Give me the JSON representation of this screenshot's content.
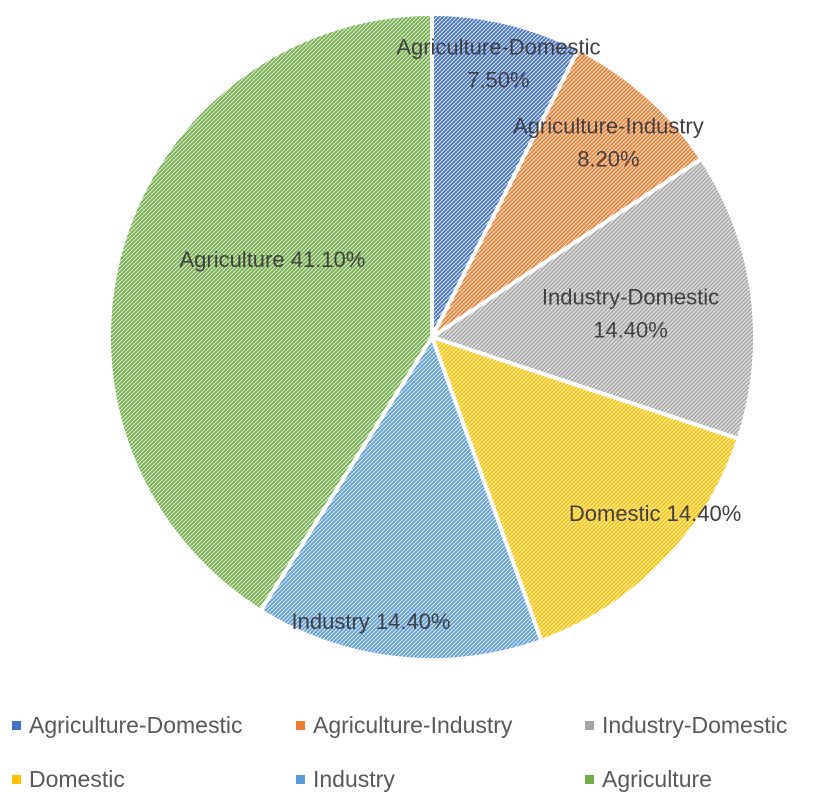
{
  "chart_data": {
    "type": "pie",
    "start_angle_deg": 0,
    "direction": "clockwise",
    "fill_pattern": "crosshatch",
    "legend_position": "bottom",
    "slices": [
      {
        "name": "Agriculture-Domestic",
        "value": 7.5,
        "label": "Agriculture-Domestic",
        "value_label": "7.50%",
        "color": "#4472C4"
      },
      {
        "name": "Agriculture-Industry",
        "value": 8.2,
        "label": "Agriculture-Industry",
        "value_label": "8.20%",
        "color": "#ED7D31"
      },
      {
        "name": "Industry-Domestic",
        "value": 14.4,
        "label": "Industry-Domestic",
        "value_label": "14.40%",
        "color": "#A5A5A5"
      },
      {
        "name": "Domestic",
        "value": 14.4,
        "label": "Domestic",
        "value_label": "14.40%",
        "color": "#FFC000"
      },
      {
        "name": "Industry",
        "value": 14.4,
        "label": "Industry",
        "value_label": "14.40%",
        "color": "#5B9BD5"
      },
      {
        "name": "Agriculture",
        "value": 41.1,
        "label": "Agriculture",
        "value_label": "41.10%",
        "color": "#70AD47"
      }
    ]
  }
}
